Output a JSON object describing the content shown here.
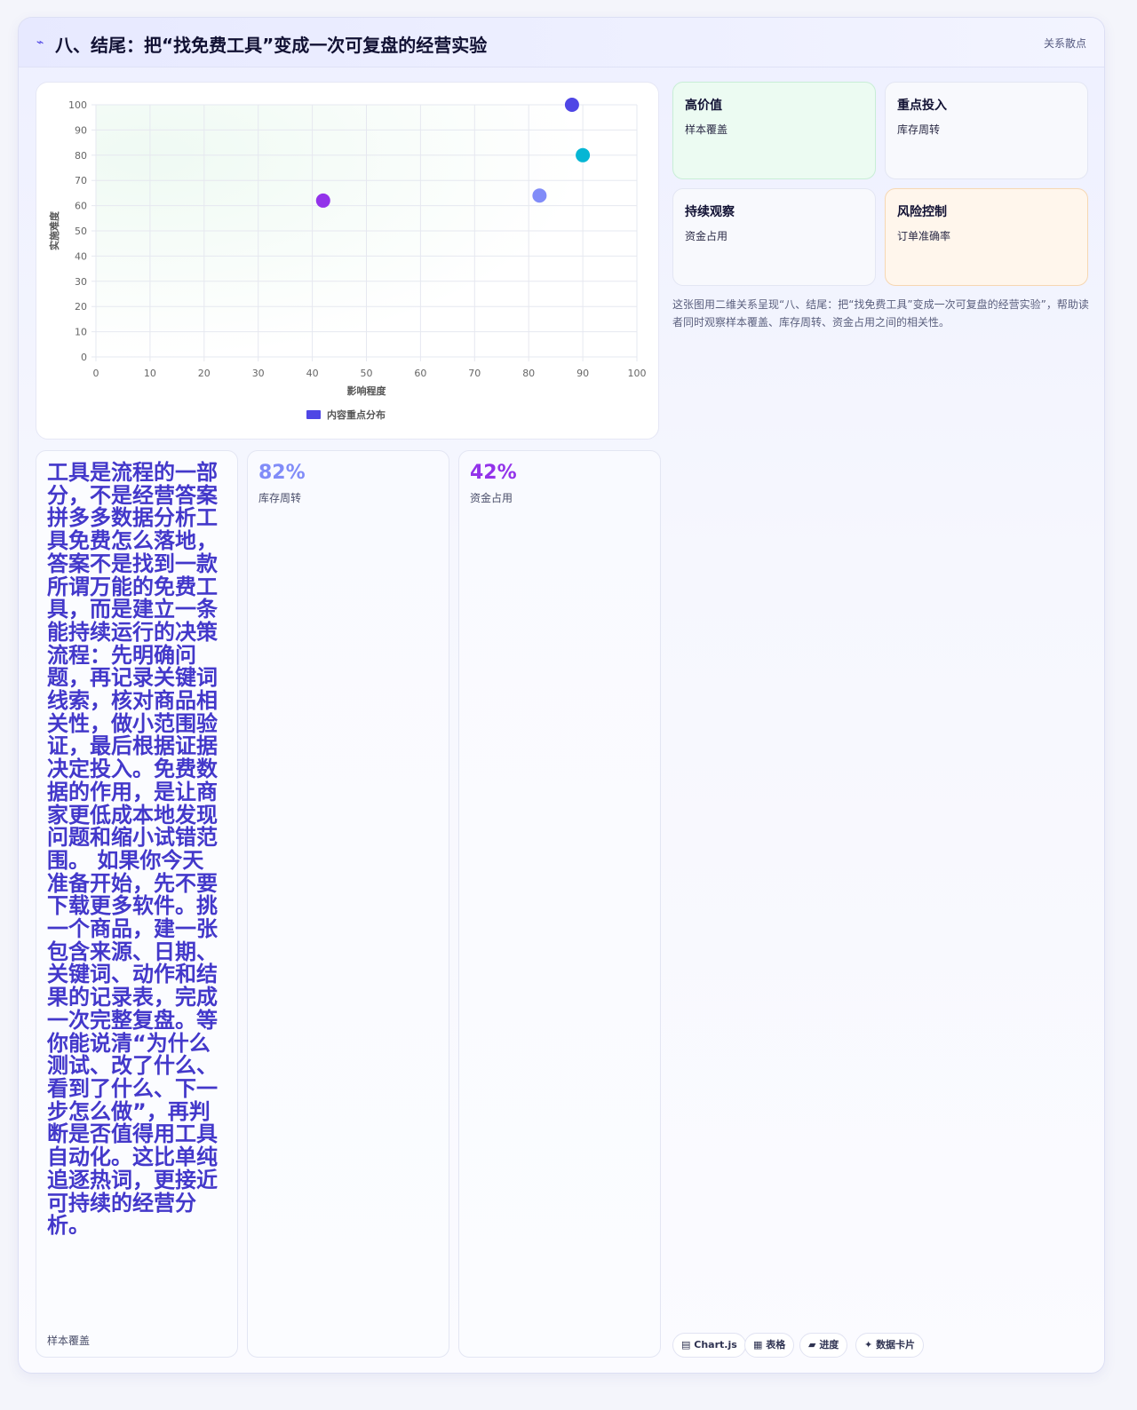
{
  "header": {
    "icon": "sparkline-icon",
    "title": "八、结尾：把“找免费工具”变成一次可复盘的经营实验",
    "tag": "关系散点"
  },
  "chart_data": {
    "type": "scatter",
    "xlabel": "影响程度",
    "ylabel": "实施难度",
    "xlim": [
      0,
      100
    ],
    "ylim": [
      0,
      100
    ],
    "x_ticks": [
      0,
      10,
      20,
      30,
      40,
      50,
      60,
      70,
      80,
      90,
      100
    ],
    "y_ticks": [
      0,
      10,
      20,
      30,
      40,
      50,
      60,
      70,
      80,
      90,
      100
    ],
    "grid": true,
    "legend": "bottom",
    "series": [
      {
        "name": "内容重点分布",
        "color": "#4f46e5",
        "points": [
          {
            "x": 88,
            "y": 100,
            "color": "#4f46e5"
          },
          {
            "x": 90,
            "y": 80,
            "color": "#06b6d4"
          },
          {
            "x": 82,
            "y": 64,
            "color": "#818cf8"
          },
          {
            "x": 42,
            "y": 62,
            "color": "#9333ea"
          }
        ]
      }
    ]
  },
  "quadrants": [
    {
      "title": "高价值",
      "sub": "样本覆盖"
    },
    {
      "title": "重点投入",
      "sub": "库存周转"
    },
    {
      "title": "持续观察",
      "sub": "资金占用"
    },
    {
      "title": "风险控制",
      "sub": "订单准确率"
    }
  ],
  "description": "这张图用二维关系呈现“八、结尾：把“找免费工具”变成一次可复盘的经营实验”，帮助读者同时观察样本覆盖、库存周转、资金占用之间的相关性。",
  "text_card": {
    "body": "工具是流程的一部分，不是经营答案 拼多多数据分析工具免费怎么落地，答案不是找到一款所谓万能的免费工具，而是建立一条能持续运行的决策流程：先明确问题，再记录关键词线索，核对商品相关性，做小范围验证，最后根据证据决定投入。免费数据的作用，是让商家更低成本地发现问题和缩小试错范围。 如果你今天准备开始，先不要下载更多软件。挑一个商品，建一张包含来源、日期、关键词、动作和结果的记录表，完成一次完整复盘。等你能说清“为什么测试、改了什么、看到了什么、下一步怎么做”，再判断是否值得用工具自动化。这比单纯追逐热词，更接近可持续的经营分析。",
    "label": "样本覆盖"
  },
  "stats": [
    {
      "value": "82%",
      "label": "库存周转",
      "color": "#818cf8"
    },
    {
      "value": "42%",
      "label": "资金占用",
      "color": "#9333ea"
    }
  ],
  "chips": [
    {
      "icon": "grid-icon",
      "glyph": "▤",
      "label": "Chart.js"
    },
    {
      "icon": "table-icon",
      "glyph": "▦",
      "label": "表格"
    },
    {
      "icon": "progress-icon",
      "glyph": "▰",
      "label": "进度"
    },
    {
      "icon": "sparkle-icon",
      "glyph": "✦",
      "label": "数据卡片"
    }
  ]
}
